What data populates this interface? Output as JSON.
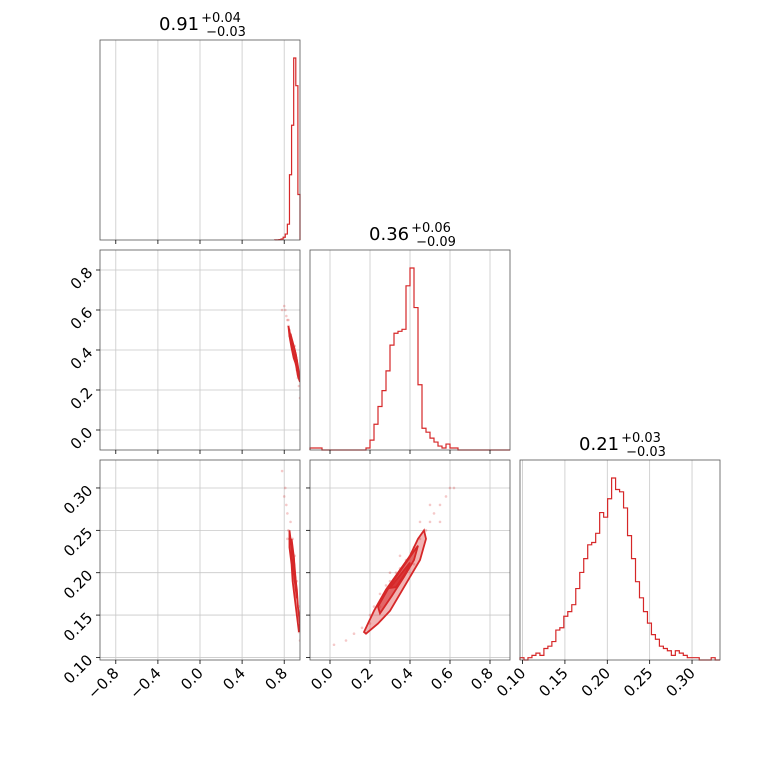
{
  "chart_data": {
    "type": "corner",
    "parameters": 3,
    "color": "#d62728",
    "grid": true,
    "titles": [
      {
        "median": "0.91",
        "plus": "+0.04",
        "minus": "−0.03"
      },
      {
        "median": "0.36",
        "plus": "+0.06",
        "minus": "−0.09"
      },
      {
        "median": "0.21",
        "plus": "+0.03",
        "minus": "−0.03"
      }
    ],
    "ranges": [
      [
        -0.95,
        0.95
      ],
      [
        -0.1,
        0.9
      ],
      [
        0.097,
        0.333
      ]
    ],
    "ticks": [
      {
        "values": [
          -0.8,
          -0.4,
          0.0,
          0.4,
          0.8
        ],
        "labels": [
          "−0.8",
          "−0.4",
          "0.0",
          "0.4",
          "0.8"
        ]
      },
      {
        "values": [
          0.0,
          0.2,
          0.4,
          0.6,
          0.8
        ],
        "labels": [
          "0.0",
          "0.2",
          "0.4",
          "0.6",
          "0.8"
        ]
      },
      {
        "values": [
          0.1,
          0.15,
          0.2,
          0.25,
          0.3
        ],
        "labels": [
          "0.10",
          "0.15",
          "0.20",
          "0.25",
          "0.30"
        ]
      }
    ],
    "histograms": [
      {
        "param": 0,
        "edges": [
          0.71,
          0.73,
          0.75,
          0.77,
          0.79,
          0.81,
          0.83,
          0.85,
          0.87,
          0.89,
          0.91,
          0.93,
          0.95
        ],
        "counts": [
          0.005,
          0.01,
          0.02,
          0.05,
          0.14,
          0.3,
          0.8,
          3.3,
          5.8,
          9.2,
          7.8,
          2.3
        ]
      },
      {
        "param": 1,
        "edges": [
          -0.1,
          -0.08,
          -0.06,
          -0.04,
          -0.02,
          0.0,
          0.02,
          0.04,
          0.06,
          0.08,
          0.1,
          0.12,
          0.14,
          0.16,
          0.18,
          0.2,
          0.22,
          0.24,
          0.26,
          0.28,
          0.3,
          0.32,
          0.34,
          0.36,
          0.38,
          0.4,
          0.42,
          0.44,
          0.46,
          0.48,
          0.5,
          0.52,
          0.54,
          0.56,
          0.58,
          0.6,
          0.62,
          0.64,
          0.66,
          0.68,
          0.7,
          0.72,
          0.74,
          0.76,
          0.78,
          0.8,
          0.82,
          0.84,
          0.86,
          0.88,
          0.9
        ],
        "counts": [
          0.01,
          0.01,
          0.01,
          0.0,
          0.0,
          0.0,
          0.0,
          0.0,
          0.0,
          0.0,
          0.0,
          0.0,
          0.0,
          0.0,
          0.01,
          0.05,
          0.13,
          0.22,
          0.3,
          0.4,
          0.53,
          0.59,
          0.6,
          0.61,
          0.83,
          0.92,
          0.72,
          0.33,
          0.11,
          0.09,
          0.06,
          0.04,
          0.02,
          0.01,
          0.03,
          0.01,
          0.01,
          0.0,
          0.0,
          0.0,
          0.0,
          0.0,
          0.0,
          0.0,
          0.0,
          0.0,
          0.0,
          0.0,
          0.0,
          0.0
        ]
      },
      {
        "param": 2,
        "edges": [
          0.097,
          0.1017,
          0.1064,
          0.1111,
          0.1158,
          0.1205,
          0.1252,
          0.1299,
          0.1346,
          0.1393,
          0.144,
          0.1487,
          0.1534,
          0.1581,
          0.1628,
          0.1675,
          0.1722,
          0.1769,
          0.1816,
          0.1863,
          0.191,
          0.1957,
          0.2004,
          0.2051,
          0.2098,
          0.2145,
          0.2192,
          0.2239,
          0.2286,
          0.2333,
          0.238,
          0.2427,
          0.2474,
          0.2521,
          0.2568,
          0.2615,
          0.2662,
          0.2709,
          0.2756,
          0.2803,
          0.285,
          0.2897,
          0.2944,
          0.2991,
          0.3038,
          0.3085,
          0.3132,
          0.3179,
          0.3226,
          0.3273,
          0.333
        ],
        "counts": [
          0.01,
          0.0,
          0.01,
          0.02,
          0.03,
          0.02,
          0.05,
          0.06,
          0.08,
          0.13,
          0.14,
          0.19,
          0.21,
          0.24,
          0.31,
          0.38,
          0.44,
          0.5,
          0.51,
          0.55,
          0.64,
          0.62,
          0.7,
          0.79,
          0.74,
          0.73,
          0.66,
          0.54,
          0.44,
          0.34,
          0.27,
          0.21,
          0.16,
          0.11,
          0.09,
          0.06,
          0.05,
          0.04,
          0.02,
          0.04,
          0.03,
          0.02,
          0.01,
          0.01,
          0.01,
          0.0,
          0.0,
          0.0,
          0.01,
          0.0
        ]
      }
    ],
    "joint_panels": [
      {
        "x_param": 0,
        "y_param": 1,
        "points": [
          [
            0.8,
            0.62
          ],
          [
            0.81,
            0.6
          ],
          [
            0.82,
            0.57
          ],
          [
            0.83,
            0.55
          ],
          [
            0.84,
            0.52
          ],
          [
            0.85,
            0.5
          ],
          [
            0.86,
            0.48
          ],
          [
            0.87,
            0.45
          ],
          [
            0.88,
            0.42
          ],
          [
            0.89,
            0.4
          ],
          [
            0.9,
            0.37
          ],
          [
            0.91,
            0.35
          ],
          [
            0.92,
            0.32
          ],
          [
            0.93,
            0.28
          ],
          [
            0.94,
            0.22
          ],
          [
            0.95,
            0.16
          ],
          [
            0.85,
            0.47
          ],
          [
            0.87,
            0.43
          ],
          [
            0.89,
            0.38
          ],
          [
            0.91,
            0.33
          ],
          [
            0.93,
            0.26
          ],
          [
            0.78,
            0.6
          ],
          [
            0.84,
            0.55
          ],
          [
            0.86,
            0.45
          ],
          [
            0.9,
            0.42
          ],
          [
            0.92,
            0.3
          ]
        ],
        "contours": [
          [
            [
              0.84,
              0.52
            ],
            [
              0.86,
              0.47
            ],
            [
              0.89,
              0.42
            ],
            [
              0.91,
              0.38
            ],
            [
              0.93,
              0.32
            ],
            [
              0.94,
              0.28
            ],
            [
              0.95,
              0.24
            ],
            [
              0.93,
              0.27
            ],
            [
              0.91,
              0.33
            ],
            [
              0.89,
              0.36
            ],
            [
              0.87,
              0.41
            ],
            [
              0.85,
              0.47
            ],
            [
              0.84,
              0.52
            ]
          ],
          [
            [
              0.86,
              0.48
            ],
            [
              0.88,
              0.44
            ],
            [
              0.9,
              0.4
            ],
            [
              0.92,
              0.35
            ],
            [
              0.93,
              0.3
            ],
            [
              0.92,
              0.31
            ],
            [
              0.9,
              0.36
            ],
            [
              0.88,
              0.4
            ],
            [
              0.86,
              0.45
            ],
            [
              0.86,
              0.48
            ]
          ]
        ]
      },
      {
        "x_param": 0,
        "y_param": 2,
        "points": [
          [
            0.78,
            0.32
          ],
          [
            0.8,
            0.29
          ],
          [
            0.82,
            0.28
          ],
          [
            0.83,
            0.27
          ],
          [
            0.84,
            0.25
          ],
          [
            0.85,
            0.24
          ],
          [
            0.86,
            0.23
          ],
          [
            0.87,
            0.22
          ],
          [
            0.88,
            0.21
          ],
          [
            0.89,
            0.2
          ],
          [
            0.9,
            0.19
          ],
          [
            0.91,
            0.18
          ],
          [
            0.92,
            0.17
          ],
          [
            0.93,
            0.15
          ],
          [
            0.94,
            0.13
          ],
          [
            0.95,
            0.12
          ],
          [
            0.86,
            0.26
          ],
          [
            0.88,
            0.24
          ],
          [
            0.9,
            0.22
          ],
          [
            0.92,
            0.19
          ],
          [
            0.94,
            0.16
          ],
          [
            0.81,
            0.3
          ],
          [
            0.83,
            0.24
          ]
        ],
        "contours": [
          [
            [
              0.85,
              0.25
            ],
            [
              0.87,
              0.23
            ],
            [
              0.89,
              0.22
            ],
            [
              0.9,
              0.2
            ],
            [
              0.92,
              0.18
            ],
            [
              0.93,
              0.16
            ],
            [
              0.95,
              0.14
            ],
            [
              0.94,
              0.13
            ],
            [
              0.92,
              0.15
            ],
            [
              0.9,
              0.17
            ],
            [
              0.88,
              0.19
            ],
            [
              0.87,
              0.21
            ],
            [
              0.85,
              0.23
            ],
            [
              0.85,
              0.25
            ]
          ],
          [
            [
              0.87,
              0.24
            ],
            [
              0.89,
              0.22
            ],
            [
              0.91,
              0.19
            ],
            [
              0.92,
              0.17
            ],
            [
              0.91,
              0.18
            ],
            [
              0.89,
              0.2
            ],
            [
              0.87,
              0.22
            ],
            [
              0.87,
              0.24
            ]
          ]
        ]
      },
      {
        "x_param": 1,
        "y_param": 2,
        "points": [
          [
            0.02,
            0.115
          ],
          [
            0.08,
            0.12
          ],
          [
            0.12,
            0.128
          ],
          [
            0.16,
            0.135
          ],
          [
            0.2,
            0.15
          ],
          [
            0.22,
            0.16
          ],
          [
            0.25,
            0.175
          ],
          [
            0.28,
            0.185
          ],
          [
            0.3,
            0.19
          ],
          [
            0.33,
            0.2
          ],
          [
            0.35,
            0.205
          ],
          [
            0.38,
            0.215
          ],
          [
            0.4,
            0.22
          ],
          [
            0.42,
            0.23
          ],
          [
            0.45,
            0.24
          ],
          [
            0.48,
            0.25
          ],
          [
            0.5,
            0.26
          ],
          [
            0.52,
            0.27
          ],
          [
            0.55,
            0.28
          ],
          [
            0.58,
            0.29
          ],
          [
            0.6,
            0.3
          ],
          [
            0.62,
            0.3
          ],
          [
            0.5,
            0.28
          ],
          [
            0.45,
            0.26
          ],
          [
            0.35,
            0.22
          ],
          [
            0.25,
            0.16
          ],
          [
            0.3,
            0.2
          ],
          [
            0.42,
            0.21
          ],
          [
            0.55,
            0.26
          ],
          [
            0.2,
            0.14
          ]
        ],
        "contours": [
          [
            [
              0.17,
              0.13
            ],
            [
              0.22,
              0.155
            ],
            [
              0.28,
              0.18
            ],
            [
              0.34,
              0.2
            ],
            [
              0.4,
              0.22
            ],
            [
              0.44,
              0.24
            ],
            [
              0.47,
              0.25
            ],
            [
              0.48,
              0.24
            ],
            [
              0.45,
              0.215
            ],
            [
              0.4,
              0.195
            ],
            [
              0.35,
              0.175
            ],
            [
              0.3,
              0.155
            ],
            [
              0.24,
              0.14
            ],
            [
              0.18,
              0.128
            ],
            [
              0.17,
              0.13
            ]
          ],
          [
            [
              0.24,
              0.16
            ],
            [
              0.3,
              0.185
            ],
            [
              0.36,
              0.205
            ],
            [
              0.41,
              0.222
            ],
            [
              0.44,
              0.232
            ],
            [
              0.42,
              0.215
            ],
            [
              0.37,
              0.195
            ],
            [
              0.31,
              0.173
            ],
            [
              0.25,
              0.152
            ],
            [
              0.24,
              0.16
            ]
          ],
          [
            [
              0.3,
              0.182
            ],
            [
              0.36,
              0.2
            ],
            [
              0.4,
              0.212
            ],
            [
              0.38,
              0.2
            ],
            [
              0.33,
              0.183
            ],
            [
              0.3,
              0.182
            ]
          ]
        ]
      }
    ]
  }
}
